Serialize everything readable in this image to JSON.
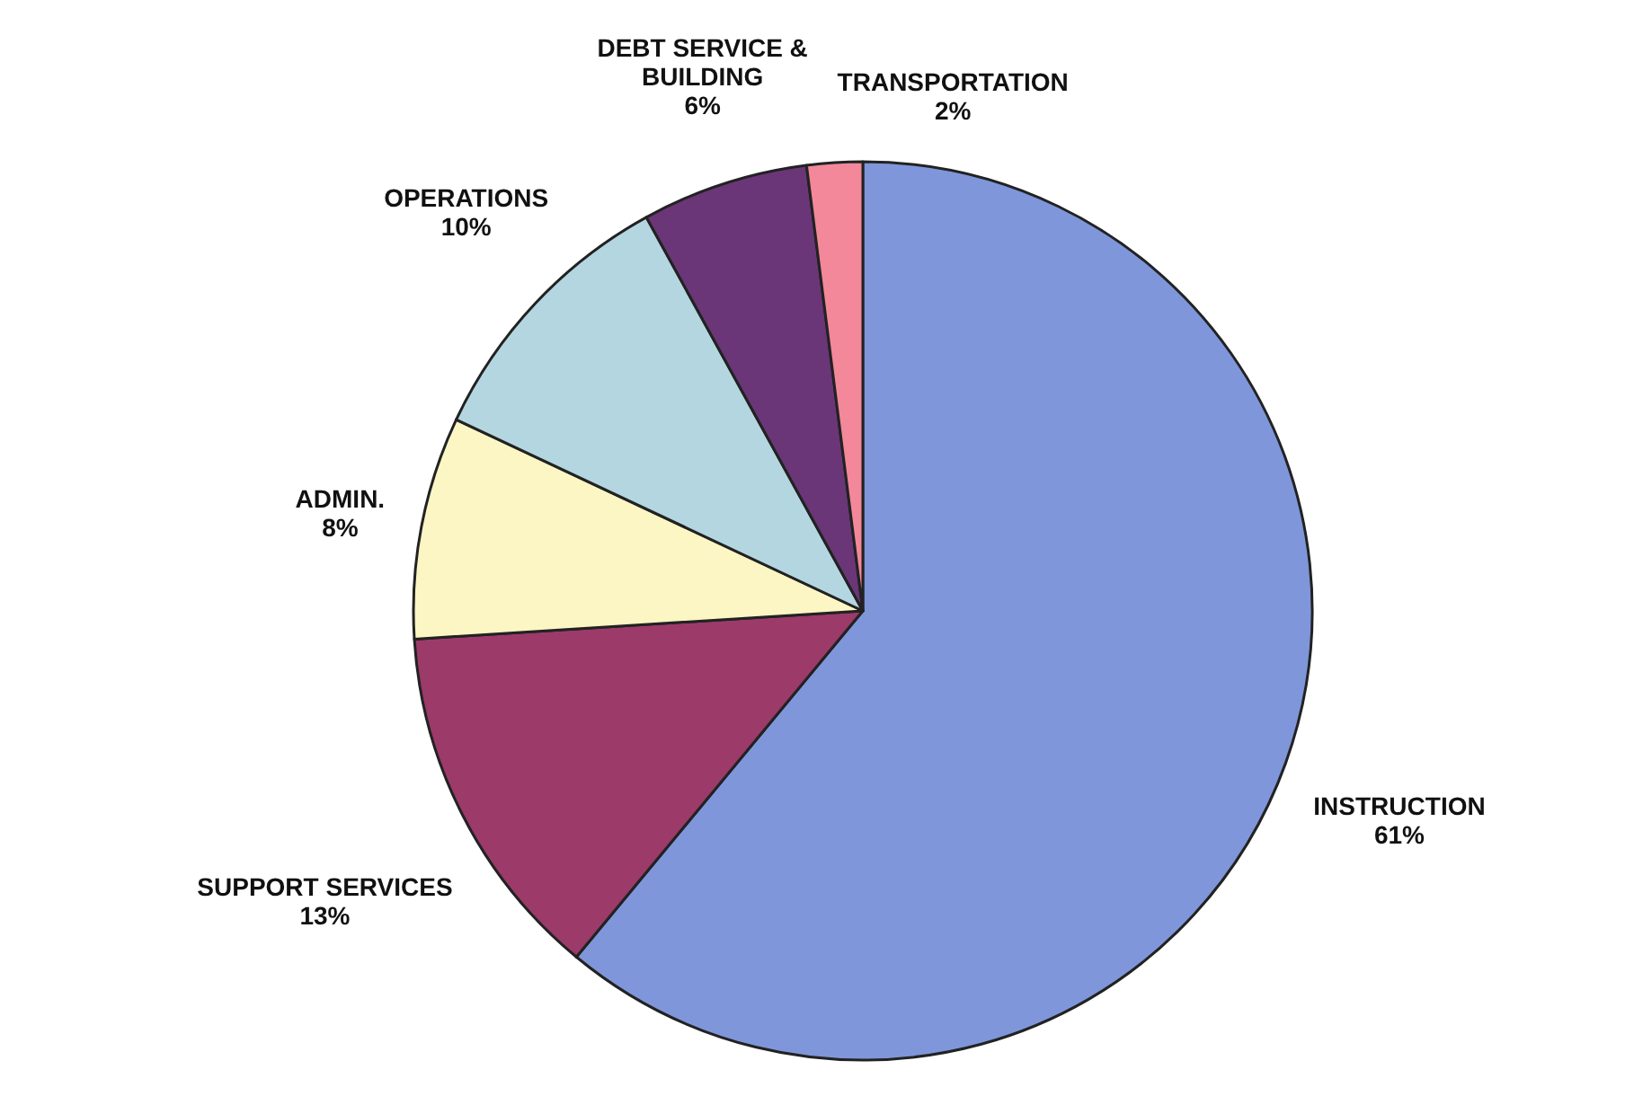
{
  "chart_data": {
    "type": "pie",
    "categories": [
      "INSTRUCTION",
      "SUPPORT SERVICES",
      "ADMIN.",
      "OPERATIONS",
      "DEBT SERVICE & BUILDING",
      "TRANSPORTATION"
    ],
    "values": [
      61,
      13,
      8,
      10,
      6,
      2
    ],
    "value_labels": [
      "61%",
      "13%",
      "8%",
      "10%",
      "6%",
      "2%"
    ],
    "colors": [
      "#7f96da",
      "#9c3a6a",
      "#fbf6c4",
      "#b4d6e0",
      "#6a3678",
      "#f2889a"
    ],
    "legend": false
  }
}
